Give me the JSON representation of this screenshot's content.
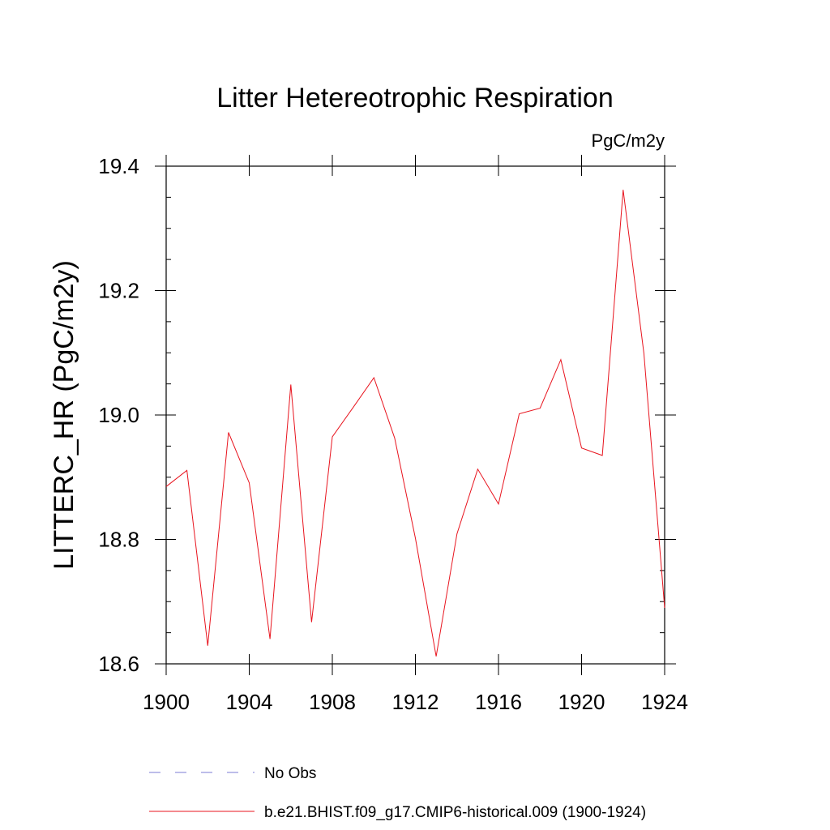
{
  "chart_data": {
    "type": "line",
    "title": "Litter Hetereotrophic Respiration",
    "units_label": "PgC/m2y",
    "ylabel": "LITTERC_HR  (PgC/m2y)",
    "xlabel": "",
    "xlim": [
      1900,
      1924
    ],
    "ylim": [
      18.6,
      19.4
    ],
    "x_ticks": [
      1900,
      1904,
      1908,
      1912,
      1916,
      1920,
      1924
    ],
    "y_ticks": [
      "18.6",
      "18.8",
      "19.0",
      "19.2",
      "19.4"
    ],
    "grid": false,
    "legend_placement": "bottom",
    "legend": [
      {
        "name": "No Obs",
        "color": "#7b7bd6",
        "style": "dashed"
      },
      {
        "name": "b.e21.BHIST.f09_g17.CMIP6-historical.009 (1900-1924)",
        "color": "#e8141e",
        "style": "solid"
      }
    ],
    "series": [
      {
        "name": "b.e21.BHIST.f09_g17.CMIP6-historical.009 (1900-1924)",
        "color": "#e8141e",
        "x": [
          1900,
          1901,
          1902,
          1903,
          1904,
          1905,
          1906,
          1907,
          1908,
          1909,
          1910,
          1911,
          1912,
          1913,
          1914,
          1915,
          1916,
          1917,
          1918,
          1919,
          1920,
          1921,
          1922,
          1923,
          1924
        ],
        "values": [
          18.885,
          18.911,
          18.629,
          18.972,
          18.891,
          18.64,
          19.049,
          18.667,
          18.965,
          19.012,
          19.06,
          18.963,
          18.802,
          18.612,
          18.809,
          18.913,
          18.857,
          19.002,
          19.011,
          19.089,
          18.947,
          18.935,
          19.362,
          19.099,
          18.69
        ]
      }
    ]
  }
}
